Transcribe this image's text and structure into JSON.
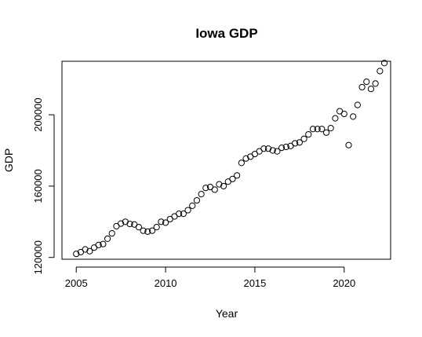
{
  "chart_data": {
    "type": "scatter",
    "title": "Iowa GDP",
    "xlabel": "Year",
    "ylabel": "GDP",
    "xlim": [
      2004.2,
      2022.6
    ],
    "ylim": [
      119000,
      230000
    ],
    "xticks": [
      2005,
      2010,
      2015,
      2020
    ],
    "yticks": [
      120000,
      160000,
      200000
    ],
    "xtick_labels": [
      "2005",
      "2010",
      "2015",
      "2020"
    ],
    "ytick_labels": [
      "120000",
      "160000",
      "200000"
    ],
    "grid": false,
    "legend": "none",
    "marker": "open-circle",
    "colors": {
      "marker_stroke": "#000000",
      "axis": "#000000",
      "background": "#ffffff"
    },
    "series": [
      {
        "x": [
          2005.0,
          2005.25,
          2005.5,
          2005.75,
          2006.0,
          2006.25,
          2006.5,
          2006.75,
          2007.0,
          2007.25,
          2007.5,
          2007.75,
          2008.0,
          2008.25,
          2008.5,
          2008.75,
          2009.0,
          2009.25,
          2009.5,
          2009.75,
          2010.0,
          2010.25,
          2010.5,
          2010.75,
          2011.0,
          2011.25,
          2011.5,
          2011.75,
          2012.0,
          2012.25,
          2012.5,
          2012.75,
          2013.0,
          2013.25,
          2013.5,
          2013.75,
          2014.0,
          2014.25,
          2014.5,
          2014.75,
          2015.0,
          2015.25,
          2015.5,
          2015.75,
          2016.0,
          2016.25,
          2016.5,
          2016.75,
          2017.0,
          2017.25,
          2017.5,
          2017.75,
          2018.0,
          2018.25,
          2018.5,
          2018.75,
          2019.0,
          2019.25,
          2019.5,
          2019.75,
          2020.0,
          2020.25,
          2020.5,
          2020.75,
          2021.0,
          2021.25,
          2021.5,
          2021.75,
          2022.0,
          2022.25
        ],
        "y": [
          122000,
          123000,
          124500,
          123500,
          125500,
          127000,
          127500,
          130500,
          133500,
          137500,
          139000,
          140000,
          138800,
          138500,
          137000,
          135000,
          134500,
          135000,
          137000,
          140000,
          139500,
          141500,
          143000,
          144500,
          144500,
          146500,
          149000,
          152000,
          155500,
          159000,
          159500,
          158000,
          161000,
          160000,
          162500,
          164000,
          166000,
          173000,
          175500,
          176500,
          178000,
          179500,
          181000,
          181000,
          180000,
          179500,
          181500,
          182000,
          182500,
          184000,
          184500,
          186500,
          189000,
          192000,
          192000,
          192000,
          190000,
          192500,
          198000,
          202000,
          200500,
          183000,
          199000,
          205500,
          215500,
          218500,
          214500,
          217500,
          224500,
          229000
        ]
      }
    ]
  }
}
